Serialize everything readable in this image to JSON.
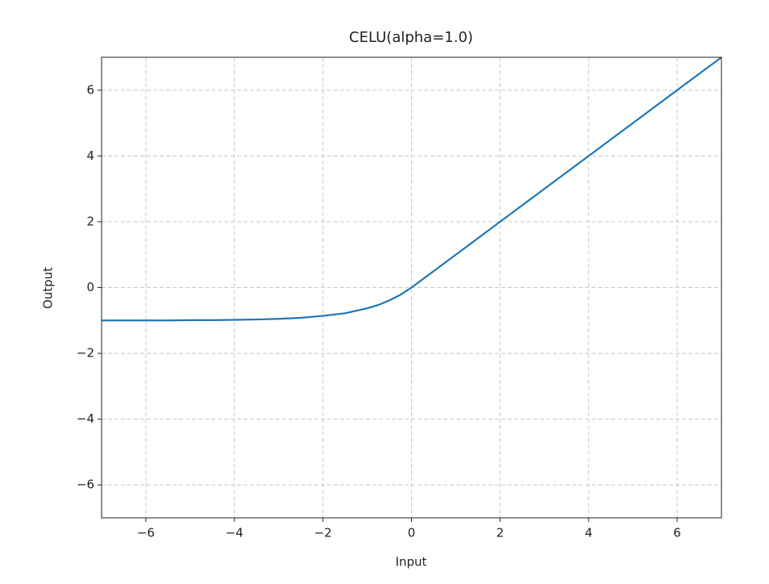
{
  "chart_data": {
    "type": "line",
    "title": "CELU(alpha=1.0)",
    "x_label": "Input",
    "y_label": "Output",
    "x": [
      -7,
      -6.5,
      -6,
      -5.5,
      -5,
      -4.5,
      -4,
      -3.5,
      -3,
      -2.5,
      -2,
      -1.5,
      -1,
      -0.75,
      -0.5,
      -0.25,
      0,
      0.5,
      1,
      1.5,
      2,
      2.5,
      3,
      3.5,
      4,
      4.5,
      5,
      5.5,
      6,
      6.5,
      7
    ],
    "series": [
      {
        "name": "CELU",
        "color": "#1f77b4",
        "values": [
          -1.0,
          -1.0,
          -1.0,
          -1.0,
          -0.99,
          -0.99,
          -0.98,
          -0.97,
          -0.95,
          -0.92,
          -0.86,
          -0.78,
          -0.63,
          -0.53,
          -0.39,
          -0.22,
          0,
          0.5,
          1,
          1.5,
          2,
          2.5,
          3,
          3.5,
          4,
          4.5,
          5,
          5.5,
          6,
          6.5,
          7
        ]
      }
    ],
    "xlim": [
      -7,
      7
    ],
    "ylim": [
      -7,
      7
    ],
    "xticks": [
      {
        "value": -6,
        "label": "−6"
      },
      {
        "value": -4,
        "label": "−4"
      },
      {
        "value": -2,
        "label": "−2"
      },
      0,
      2,
      4,
      6
    ],
    "yticks": [
      {
        "value": -6,
        "label": "−6"
      },
      {
        "value": -4,
        "label": "−4"
      },
      {
        "value": -2,
        "label": "−2"
      },
      0,
      2,
      4,
      6
    ],
    "grid": true
  }
}
